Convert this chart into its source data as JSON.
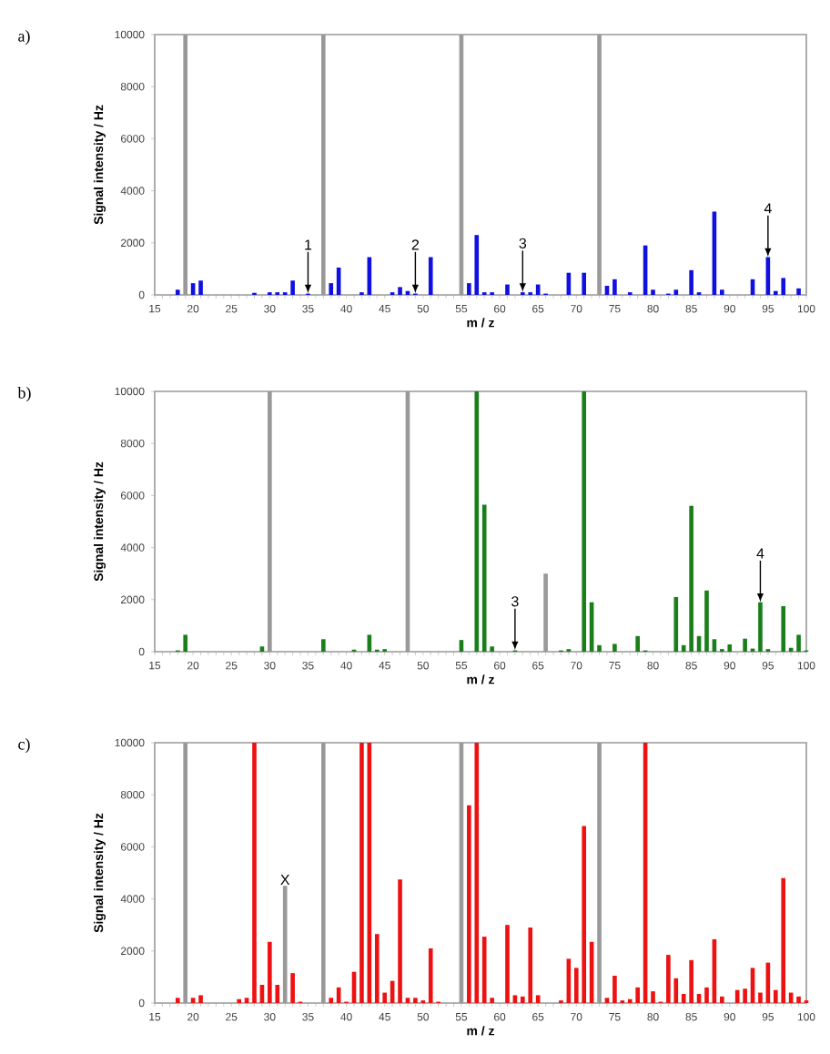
{
  "chart_data": [
    {
      "type": "bar",
      "title": "a)",
      "xlabel": "m / z",
      "ylabel": "Signal intensity / Hz",
      "xlim": [
        15,
        100
      ],
      "ylim": [
        0,
        10000
      ],
      "xticks": [
        15,
        20,
        25,
        30,
        35,
        40,
        45,
        50,
        55,
        60,
        65,
        70,
        75,
        80,
        85,
        90,
        95,
        100
      ],
      "yticks": [
        0,
        2000,
        4000,
        6000,
        8000,
        10000
      ],
      "series": [
        {
          "color": "#999999",
          "x": [
            19,
            37,
            55,
            73
          ],
          "values": [
            10000,
            10000,
            10000,
            10000
          ]
        },
        {
          "color": "#1010e0",
          "x": [
            18,
            20,
            21,
            28,
            30,
            31,
            32,
            33,
            35,
            38,
            39,
            42,
            43,
            46,
            47,
            48,
            49,
            51,
            56,
            57,
            58,
            59,
            61,
            63,
            64,
            65,
            66,
            69,
            71,
            74,
            75,
            77,
            79,
            80,
            82,
            83,
            85,
            86,
            88,
            89,
            93,
            95,
            96,
            97,
            99
          ],
          "values": [
            200,
            450,
            550,
            80,
            100,
            100,
            100,
            550,
            50,
            450,
            1050,
            100,
            1450,
            100,
            300,
            150,
            50,
            1450,
            450,
            2300,
            100,
            100,
            400,
            100,
            100,
            400,
            50,
            850,
            850,
            350,
            600,
            100,
            1900,
            200,
            50,
            200,
            950,
            100,
            3200,
            200,
            600,
            1450,
            150,
            650,
            250
          ]
        }
      ],
      "annotations": [
        {
          "text": "1",
          "x": 35,
          "y": 50
        },
        {
          "text": "2",
          "x": 49,
          "y": 50
        },
        {
          "text": "3",
          "x": 63,
          "y": 100
        },
        {
          "text": "4",
          "x": 95,
          "y": 1450
        }
      ]
    },
    {
      "type": "bar",
      "title": "b)",
      "xlabel": "m / z",
      "ylabel": "Signal intensity / Hz",
      "xlim": [
        15,
        100
      ],
      "ylim": [
        0,
        10000
      ],
      "xticks": [
        15,
        20,
        25,
        30,
        35,
        40,
        45,
        50,
        55,
        60,
        65,
        70,
        75,
        80,
        85,
        90,
        95,
        100
      ],
      "yticks": [
        0,
        2000,
        4000,
        6000,
        8000,
        10000
      ],
      "series": [
        {
          "color": "#999999",
          "x": [
            30,
            48,
            66
          ],
          "values": [
            10000,
            10000,
            3000
          ]
        },
        {
          "color": "#1a7f1a",
          "x": [
            18,
            19,
            21,
            29,
            37,
            41,
            43,
            44,
            45,
            46,
            55,
            57,
            58,
            59,
            62,
            68,
            69,
            71,
            72,
            73,
            75,
            78,
            79,
            83,
            84,
            85,
            86,
            87,
            88,
            89,
            90,
            92,
            93,
            94,
            95,
            97,
            98,
            99,
            100
          ],
          "values": [
            50,
            650,
            null,
            200,
            480,
            80,
            650,
            80,
            100,
            null,
            450,
            10000,
            5650,
            200,
            50,
            50,
            100,
            10000,
            1900,
            250,
            300,
            600,
            50,
            2100,
            250,
            5600,
            600,
            2350,
            480,
            100,
            280,
            500,
            120,
            1900,
            100,
            1750,
            150,
            650,
            50
          ]
        }
      ],
      "annotations": [
        {
          "text": "3",
          "x": 62,
          "y": 50
        },
        {
          "text": "4",
          "x": 94,
          "y": 1900
        }
      ]
    },
    {
      "type": "bar",
      "title": "c)",
      "xlabel": "m / z",
      "ylabel": "Signal intensity / Hz",
      "xlim": [
        15,
        100
      ],
      "ylim": [
        0,
        10000
      ],
      "xticks": [
        15,
        20,
        25,
        30,
        35,
        40,
        45,
        50,
        55,
        60,
        65,
        70,
        75,
        80,
        85,
        90,
        95,
        100
      ],
      "yticks": [
        0,
        2000,
        4000,
        6000,
        8000,
        10000
      ],
      "series": [
        {
          "color": "#999999",
          "x": [
            19,
            32,
            37,
            55,
            73
          ],
          "values": [
            10000,
            4500,
            10000,
            10000,
            10000
          ]
        },
        {
          "color": "#ee1111",
          "x": [
            18,
            20,
            21,
            26,
            27,
            28,
            29,
            30,
            31,
            33,
            34,
            38,
            39,
            40,
            41,
            42,
            43,
            44,
            45,
            46,
            47,
            48,
            49,
            50,
            51,
            52,
            56,
            57,
            58,
            59,
            61,
            62,
            63,
            64,
            65,
            68,
            69,
            70,
            71,
            72,
            74,
            75,
            76,
            77,
            78,
            79,
            80,
            81,
            82,
            83,
            84,
            85,
            86,
            87,
            88,
            89,
            91,
            92,
            93,
            94,
            95,
            96,
            97,
            98,
            99,
            100
          ],
          "values": [
            200,
            200,
            300,
            150,
            200,
            10000,
            700,
            2350,
            700,
            1150,
            50,
            200,
            600,
            50,
            1200,
            10000,
            10000,
            2650,
            400,
            850,
            4750,
            200,
            200,
            100,
            2100,
            50,
            7600,
            10000,
            2550,
            200,
            3000,
            300,
            250,
            2900,
            300,
            100,
            1700,
            1350,
            6800,
            2350,
            200,
            1050,
            100,
            150,
            600,
            10000,
            450,
            50,
            1850,
            950,
            350,
            1650,
            350,
            600,
            2450,
            250,
            500,
            550,
            1350,
            400,
            1550,
            500,
            4800,
            400,
            250,
            100
          ]
        }
      ],
      "annotations": [
        {
          "text": "X",
          "x": 32,
          "y": 4500
        }
      ]
    }
  ]
}
